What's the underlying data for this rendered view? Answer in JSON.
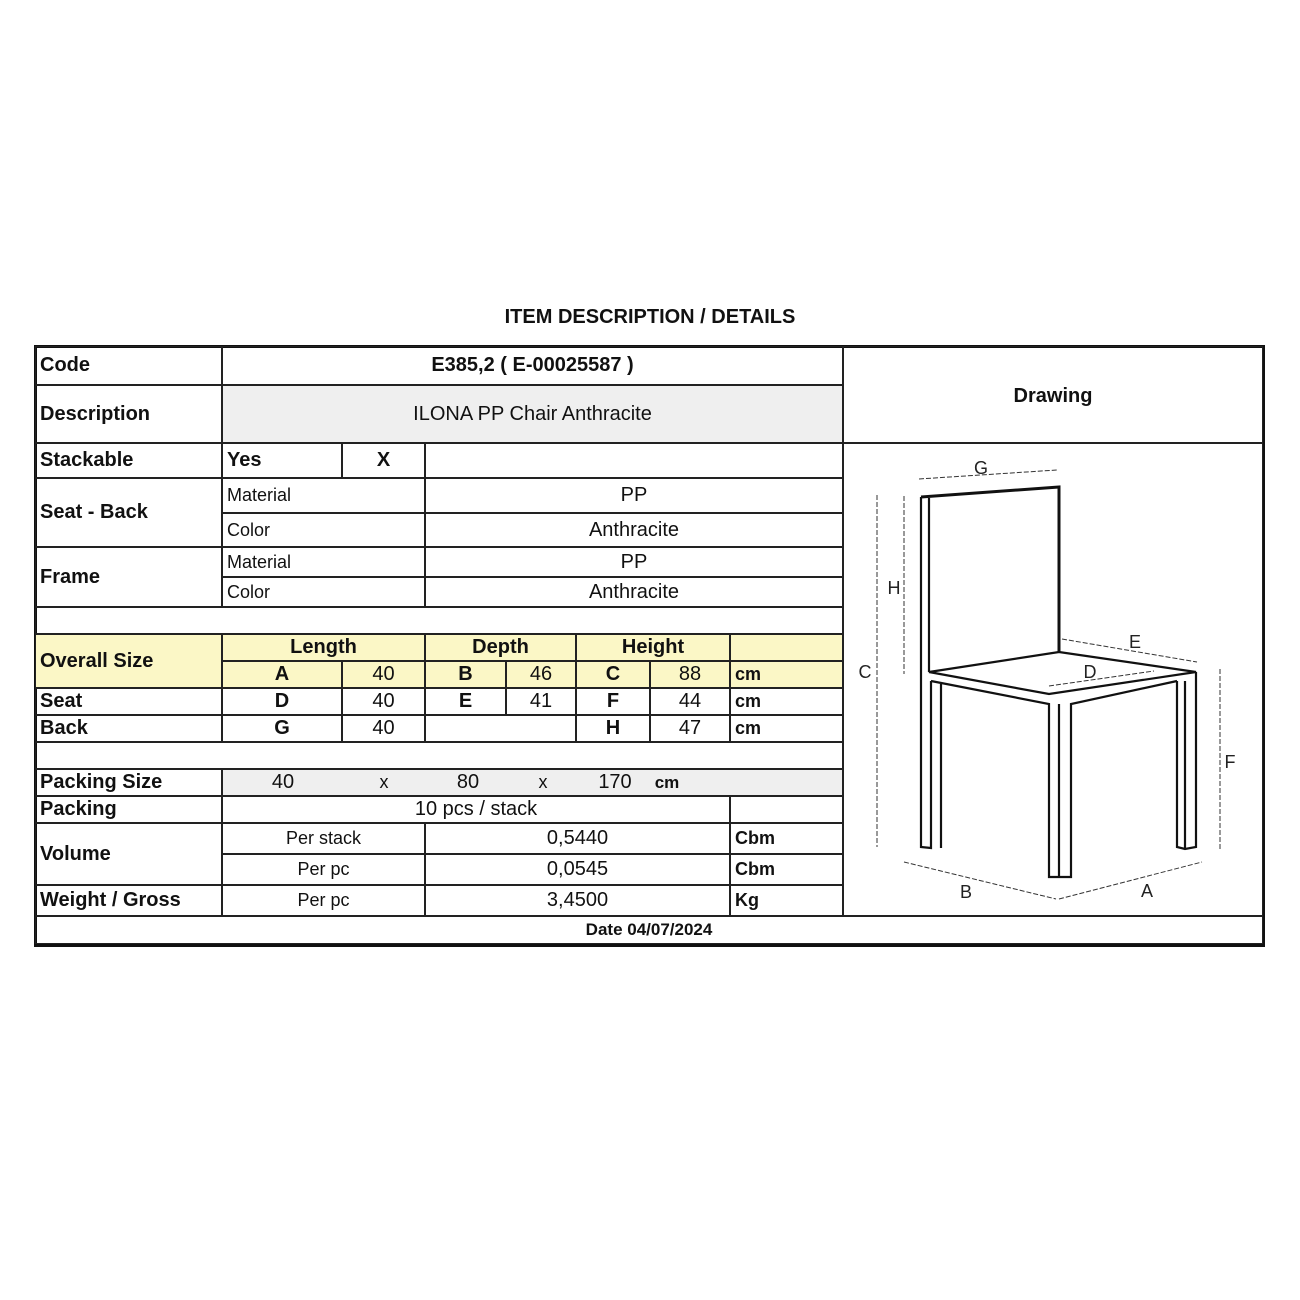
{
  "title": "ITEM DESCRIPTION / DETAILS",
  "code": {
    "label": "Code",
    "value": "E385,2 ( E-00025587 )"
  },
  "description": {
    "label": "Description",
    "value": "ILONA PP Chair Anthracite"
  },
  "drawing": {
    "label": "Drawing",
    "dimension_labels": [
      "G",
      "H",
      "C",
      "E",
      "D",
      "F",
      "B",
      "A"
    ]
  },
  "stackable": {
    "label": "Stackable",
    "yes": "Yes",
    "mark": "X"
  },
  "seat_back": {
    "label": "Seat - Back",
    "material_label": "Material",
    "material": "PP",
    "color_label": "Color",
    "color": "Anthracite"
  },
  "frame": {
    "label": "Frame",
    "material_label": "Material",
    "material": "PP",
    "color_label": "Color",
    "color": "Anthracite"
  },
  "sizes": {
    "headers": {
      "length": "Length",
      "depth": "Depth",
      "height": "Height"
    },
    "highlight_color": "#fbf7c6",
    "rows": [
      {
        "label": "Overall Size",
        "l_key": "A",
        "l_val": "40",
        "d_key": "B",
        "d_val": "46",
        "h_key": "C",
        "h_val": "88",
        "unit": "cm"
      },
      {
        "label": "Seat",
        "l_key": "D",
        "l_val": "40",
        "d_key": "E",
        "d_val": "41",
        "h_key": "F",
        "h_val": "44",
        "unit": "cm"
      },
      {
        "label": "Back",
        "l_key": "G",
        "l_val": "40",
        "h_key": "H",
        "h_val": "47",
        "unit": "cm"
      }
    ]
  },
  "packing_size": {
    "label": "Packing Size",
    "l": "40",
    "x1": "x",
    "w": "80",
    "x2": "x",
    "h": "170",
    "unit": "cm"
  },
  "packing": {
    "label": "Packing",
    "value": "10 pcs / stack"
  },
  "volume": {
    "label": "Volume",
    "per_stack_label": "Per stack",
    "per_stack": "0,5440",
    "per_pc_label": "Per pc",
    "per_pc": "0,0545",
    "unit": "Cbm"
  },
  "weight": {
    "label": "Weight / Gross",
    "per_pc_label": "Per pc",
    "value": "3,4500",
    "unit": "Kg"
  },
  "date": "Date 04/07/2024"
}
